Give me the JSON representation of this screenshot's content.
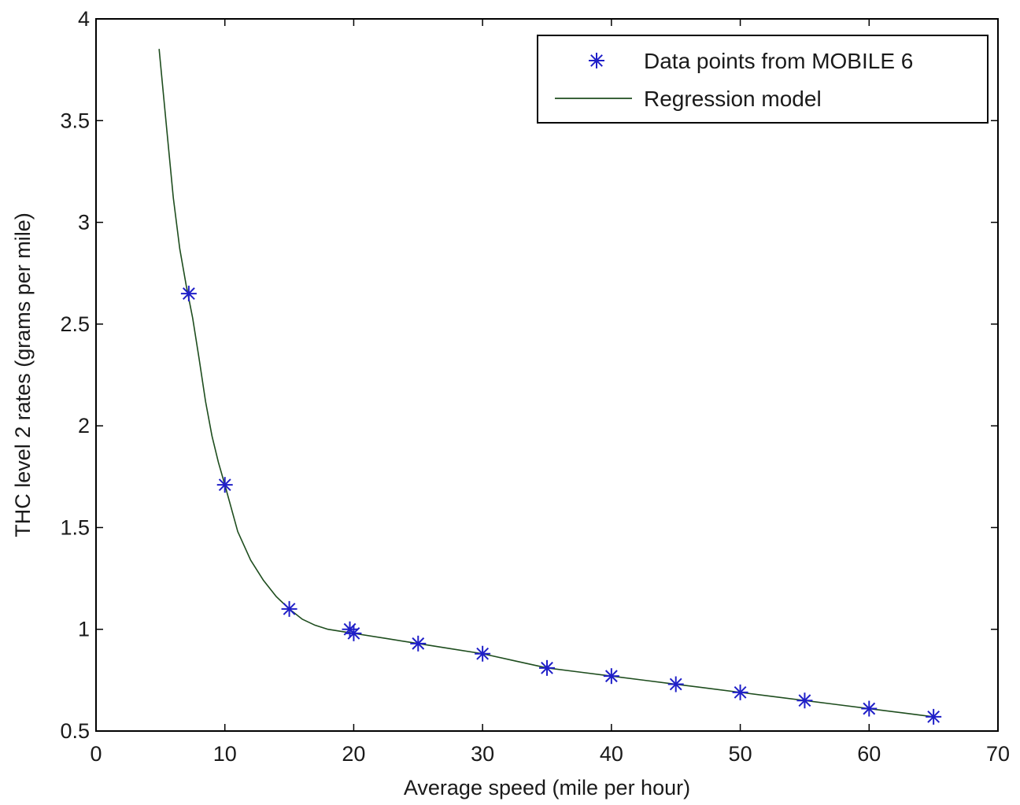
{
  "chart_data": {
    "type": "line",
    "title": "",
    "xlabel": "Average speed (mile per hour)",
    "ylabel": "THC level 2 rates (grams per mile)",
    "xlim": [
      0,
      70
    ],
    "ylim": [
      0.5,
      4
    ],
    "xticks": [
      0,
      10,
      20,
      30,
      40,
      50,
      60,
      70
    ],
    "xtick_labels": [
      "0",
      "10",
      "20",
      "30",
      "40",
      "50",
      "60",
      "70"
    ],
    "yticks": [
      0.5,
      1,
      1.5,
      2,
      2.5,
      3,
      3.5,
      4
    ],
    "ytick_labels": [
      "0.5",
      "1",
      "1.5",
      "2",
      "2.5",
      "3",
      "3.5",
      "4"
    ],
    "grid": false,
    "legend": {
      "position": "top-right",
      "entries": [
        "Data points from MOBILE 6",
        "Regression model"
      ]
    },
    "series": [
      {
        "name": "Data points from MOBILE 6",
        "kind": "scatter",
        "marker": "asterisk",
        "color": "#1f1fc8",
        "x": [
          7.2,
          10,
          15,
          19.7,
          20,
          25,
          30,
          35,
          40,
          45,
          50,
          55,
          60,
          65
        ],
        "y": [
          2.65,
          1.71,
          1.1,
          1.0,
          0.98,
          0.93,
          0.88,
          0.81,
          0.77,
          0.73,
          0.69,
          0.65,
          0.61,
          0.57
        ]
      },
      {
        "name": "Regression model",
        "kind": "line",
        "color": "#1e4d1e",
        "x": [
          4.9,
          5.5,
          6,
          6.5,
          7,
          7.5,
          8,
          8.5,
          9,
          9.5,
          10,
          11,
          12,
          13,
          14,
          15,
          16,
          17,
          18,
          19,
          20,
          22.5,
          25,
          27.5,
          30,
          32.5,
          35,
          37.5,
          40,
          42.5,
          45,
          47.5,
          50,
          52.5,
          55,
          57.5,
          60,
          62.5,
          65
        ],
        "y": [
          3.85,
          3.45,
          3.12,
          2.87,
          2.69,
          2.53,
          2.33,
          2.12,
          1.95,
          1.82,
          1.71,
          1.48,
          1.34,
          1.24,
          1.16,
          1.1,
          1.05,
          1.02,
          1.0,
          0.99,
          0.98,
          0.955,
          0.93,
          0.905,
          0.88,
          0.845,
          0.81,
          0.79,
          0.77,
          0.75,
          0.73,
          0.71,
          0.69,
          0.67,
          0.65,
          0.63,
          0.61,
          0.59,
          0.57
        ]
      }
    ]
  }
}
